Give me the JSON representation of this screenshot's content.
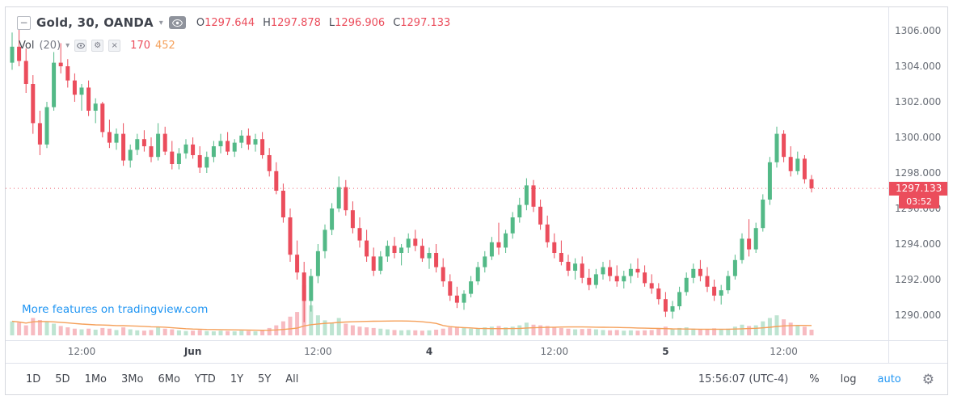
{
  "header": {
    "symbol_title": "Gold, 30, OANDA",
    "ohlc": {
      "o_label": "O",
      "o": "1297.644",
      "h_label": "H",
      "h": "1297.878",
      "l_label": "L",
      "l": "1296.906",
      "c_label": "C",
      "c": "1297.133"
    },
    "indicator": {
      "name": "Vol",
      "param": "(20)",
      "current_value": "170",
      "ma_value": "452"
    }
  },
  "icons": {
    "collapse_minus": "−",
    "caret_down": "▾",
    "gear": "⚙",
    "close": "×"
  },
  "watermark_link": "More features on tradingview.com",
  "toolbar": {
    "ranges": [
      "1D",
      "5D",
      "1Mo",
      "3Mo",
      "6Mo",
      "YTD",
      "1Y",
      "5Y",
      "All"
    ],
    "clock": "15:56:07 (UTC-4)",
    "percent_label": "%",
    "log_label": "log",
    "auto_label": "auto"
  },
  "colors": {
    "up": "#53b987",
    "down": "#eb4d5c",
    "up_volume": "rgba(83,185,135,0.38)",
    "down_volume": "rgba(235,77,92,0.38)",
    "volume_ma": "#f5a05a",
    "accent_blue": "#2196f3",
    "axis_text": "#686d76"
  },
  "chart_data": {
    "type": "candlestick",
    "title": "Gold, 30, OANDA",
    "symbol": "Gold",
    "interval_minutes": 30,
    "exchange": "OANDA",
    "last_price": 1297.133,
    "last_price_label": "1297.133",
    "countdown": "03:52",
    "ylim": [
      1288.6,
      1307.6
    ],
    "price_axis_ticks": [
      "1306.000",
      "1304.000",
      "1302.000",
      "1300.000",
      "1298.000",
      "1296.000",
      "1294.000",
      "1292.000",
      "1290.000"
    ],
    "time_labels": [
      {
        "text": "12:00",
        "idx": 10,
        "bold": false
      },
      {
        "text": "Jun",
        "idx": 26,
        "bold": true
      },
      {
        "text": "12:00",
        "idx": 44,
        "bold": false
      },
      {
        "text": "4",
        "idx": 60,
        "bold": true
      },
      {
        "text": "12:00",
        "idx": 78,
        "bold": false
      },
      {
        "text": "5",
        "idx": 94,
        "bold": true
      },
      {
        "text": "12:00",
        "idx": 111,
        "bold": false
      }
    ],
    "volume_ma_period": 20,
    "volume_legend": {
      "current": 170,
      "ma": 452
    },
    "candles": [
      [
        1304.2,
        1305.9,
        1303.8,
        1305.1,
        420
      ],
      [
        1305.1,
        1306.2,
        1304.0,
        1304.3,
        380
      ],
      [
        1304.3,
        1305.0,
        1302.5,
        1303.0,
        300
      ],
      [
        1303.0,
        1303.5,
        1300.2,
        1300.8,
        520
      ],
      [
        1300.8,
        1301.5,
        1299.0,
        1299.6,
        460
      ],
      [
        1299.6,
        1302.0,
        1299.4,
        1301.7,
        400
      ],
      [
        1301.7,
        1304.8,
        1301.5,
        1304.2,
        350
      ],
      [
        1304.2,
        1305.3,
        1303.6,
        1304.0,
        280
      ],
      [
        1304.0,
        1304.4,
        1302.8,
        1303.2,
        240
      ],
      [
        1303.2,
        1303.6,
        1302.0,
        1302.4,
        200
      ],
      [
        1302.4,
        1303.0,
        1301.5,
        1302.8,
        180
      ],
      [
        1302.8,
        1303.2,
        1301.2,
        1301.5,
        200
      ],
      [
        1301.5,
        1302.2,
        1300.8,
        1301.9,
        170
      ],
      [
        1301.9,
        1302.0,
        1300.0,
        1300.3,
        220
      ],
      [
        1300.3,
        1301.0,
        1299.4,
        1299.7,
        200
      ],
      [
        1299.7,
        1300.5,
        1299.3,
        1300.2,
        160
      ],
      [
        1300.2,
        1300.8,
        1298.4,
        1298.7,
        240
      ],
      [
        1298.7,
        1299.6,
        1298.3,
        1299.3,
        180
      ],
      [
        1299.3,
        1300.2,
        1299.0,
        1299.9,
        150
      ],
      [
        1299.9,
        1300.4,
        1299.2,
        1299.5,
        140
      ],
      [
        1299.5,
        1300.0,
        1298.6,
        1298.9,
        160
      ],
      [
        1298.9,
        1300.8,
        1298.7,
        1300.2,
        260
      ],
      [
        1300.2,
        1300.6,
        1299.0,
        1299.2,
        200
      ],
      [
        1299.2,
        1299.8,
        1298.2,
        1298.5,
        180
      ],
      [
        1298.5,
        1299.4,
        1298.2,
        1299.1,
        150
      ],
      [
        1299.1,
        1299.9,
        1298.8,
        1299.6,
        130
      ],
      [
        1299.6,
        1300.0,
        1298.8,
        1299.0,
        140
      ],
      [
        1299.0,
        1299.5,
        1298.0,
        1298.3,
        160
      ],
      [
        1298.3,
        1299.2,
        1298.0,
        1298.9,
        130
      ],
      [
        1298.9,
        1299.8,
        1298.6,
        1299.5,
        120
      ],
      [
        1299.5,
        1300.2,
        1299.1,
        1299.8,
        140
      ],
      [
        1299.8,
        1300.3,
        1299.0,
        1299.2,
        130
      ],
      [
        1299.2,
        1299.9,
        1298.9,
        1299.7,
        120
      ],
      [
        1299.7,
        1300.4,
        1299.4,
        1300.1,
        140
      ],
      [
        1300.1,
        1300.5,
        1299.3,
        1299.6,
        130
      ],
      [
        1299.6,
        1300.2,
        1299.2,
        1299.9,
        120
      ],
      [
        1299.9,
        1300.3,
        1298.8,
        1299.0,
        160
      ],
      [
        1299.0,
        1299.4,
        1297.8,
        1298.1,
        220
      ],
      [
        1298.1,
        1298.6,
        1296.8,
        1297.0,
        300
      ],
      [
        1297.0,
        1297.4,
        1295.2,
        1295.5,
        420
      ],
      [
        1295.5,
        1296.0,
        1293.0,
        1293.4,
        560
      ],
      [
        1293.4,
        1294.2,
        1292.0,
        1292.4,
        700
      ],
      [
        1292.4,
        1293.0,
        1289.6,
        1290.8,
        1500
      ],
      [
        1290.8,
        1292.6,
        1290.2,
        1292.2,
        900
      ],
      [
        1292.2,
        1294.0,
        1291.8,
        1293.6,
        600
      ],
      [
        1293.6,
        1295.1,
        1293.2,
        1294.8,
        450
      ],
      [
        1294.8,
        1296.3,
        1294.5,
        1296.0,
        380
      ],
      [
        1296.0,
        1297.8,
        1295.8,
        1297.2,
        520
      ],
      [
        1297.2,
        1297.6,
        1295.6,
        1295.9,
        350
      ],
      [
        1295.9,
        1296.4,
        1294.6,
        1294.9,
        300
      ],
      [
        1294.9,
        1295.5,
        1293.8,
        1294.2,
        260
      ],
      [
        1294.2,
        1294.8,
        1293.0,
        1293.3,
        240
      ],
      [
        1293.3,
        1293.8,
        1292.2,
        1292.5,
        220
      ],
      [
        1292.5,
        1293.6,
        1292.3,
        1293.3,
        200
      ],
      [
        1293.3,
        1294.2,
        1293.0,
        1293.9,
        180
      ],
      [
        1293.9,
        1294.4,
        1293.2,
        1293.5,
        160
      ],
      [
        1293.5,
        1294.0,
        1292.8,
        1293.8,
        150
      ],
      [
        1293.8,
        1294.6,
        1293.5,
        1294.3,
        160
      ],
      [
        1294.3,
        1294.8,
        1293.6,
        1293.9,
        150
      ],
      [
        1293.9,
        1294.3,
        1293.0,
        1293.2,
        140
      ],
      [
        1293.2,
        1293.8,
        1292.6,
        1293.5,
        150
      ],
      [
        1293.5,
        1294.0,
        1292.4,
        1292.7,
        170
      ],
      [
        1292.7,
        1293.2,
        1291.6,
        1291.9,
        200
      ],
      [
        1291.9,
        1292.3,
        1290.8,
        1291.1,
        240
      ],
      [
        1291.1,
        1291.6,
        1290.4,
        1290.7,
        260
      ],
      [
        1290.7,
        1291.4,
        1290.3,
        1291.2,
        220
      ],
      [
        1291.2,
        1292.2,
        1291.0,
        1291.9,
        200
      ],
      [
        1291.9,
        1293.0,
        1291.7,
        1292.7,
        220
      ],
      [
        1292.7,
        1293.6,
        1292.4,
        1293.3,
        240
      ],
      [
        1293.3,
        1294.4,
        1293.1,
        1294.1,
        260
      ],
      [
        1294.1,
        1295.2,
        1293.4,
        1293.8,
        280
      ],
      [
        1293.8,
        1294.8,
        1293.5,
        1294.6,
        240
      ],
      [
        1294.6,
        1295.8,
        1294.3,
        1295.5,
        260
      ],
      [
        1295.5,
        1296.6,
        1295.2,
        1296.2,
        300
      ],
      [
        1296.2,
        1297.7,
        1295.9,
        1297.3,
        380
      ],
      [
        1297.3,
        1297.6,
        1295.8,
        1296.1,
        320
      ],
      [
        1296.1,
        1296.5,
        1294.8,
        1295.1,
        300
      ],
      [
        1295.1,
        1295.6,
        1293.8,
        1294.1,
        280
      ],
      [
        1294.1,
        1294.6,
        1293.2,
        1293.5,
        240
      ],
      [
        1293.5,
        1294.2,
        1292.8,
        1293.0,
        220
      ],
      [
        1293.0,
        1293.4,
        1292.2,
        1292.5,
        200
      ],
      [
        1292.5,
        1293.2,
        1292.0,
        1292.9,
        180
      ],
      [
        1292.9,
        1293.3,
        1291.8,
        1292.1,
        190
      ],
      [
        1292.1,
        1292.6,
        1291.4,
        1291.7,
        200
      ],
      [
        1291.7,
        1292.6,
        1291.5,
        1292.3,
        180
      ],
      [
        1292.3,
        1293.0,
        1292.0,
        1292.7,
        160
      ],
      [
        1292.7,
        1293.1,
        1291.9,
        1292.2,
        150
      ],
      [
        1292.2,
        1292.8,
        1291.6,
        1291.9,
        160
      ],
      [
        1291.9,
        1292.5,
        1291.5,
        1292.2,
        140
      ],
      [
        1292.2,
        1292.9,
        1291.8,
        1292.6,
        150
      ],
      [
        1292.6,
        1293.2,
        1292.1,
        1292.4,
        140
      ],
      [
        1292.4,
        1292.8,
        1291.6,
        1291.8,
        150
      ],
      [
        1291.8,
        1292.3,
        1291.2,
        1291.5,
        160
      ],
      [
        1291.5,
        1291.8,
        1290.6,
        1290.9,
        220
      ],
      [
        1290.9,
        1291.3,
        1289.9,
        1290.2,
        260
      ],
      [
        1290.2,
        1290.8,
        1289.8,
        1290.5,
        200
      ],
      [
        1290.5,
        1291.6,
        1290.3,
        1291.3,
        220
      ],
      [
        1291.3,
        1292.4,
        1291.1,
        1292.1,
        240
      ],
      [
        1292.1,
        1292.9,
        1291.8,
        1292.6,
        200
      ],
      [
        1292.6,
        1293.1,
        1291.9,
        1292.2,
        180
      ],
      [
        1292.2,
        1292.7,
        1291.3,
        1291.6,
        190
      ],
      [
        1291.6,
        1292.0,
        1290.8,
        1291.1,
        210
      ],
      [
        1291.1,
        1291.7,
        1290.6,
        1291.4,
        180
      ],
      [
        1291.4,
        1292.5,
        1291.2,
        1292.2,
        200
      ],
      [
        1292.2,
        1293.4,
        1292.0,
        1293.1,
        260
      ],
      [
        1293.1,
        1294.6,
        1292.9,
        1294.3,
        320
      ],
      [
        1294.3,
        1295.4,
        1293.3,
        1293.7,
        280
      ],
      [
        1293.7,
        1295.2,
        1293.5,
        1294.9,
        300
      ],
      [
        1294.9,
        1296.8,
        1294.7,
        1296.5,
        420
      ],
      [
        1296.5,
        1298.9,
        1296.2,
        1298.6,
        520
      ],
      [
        1298.6,
        1300.6,
        1298.3,
        1300.2,
        600
      ],
      [
        1300.2,
        1300.4,
        1298.6,
        1298.9,
        480
      ],
      [
        1298.9,
        1299.5,
        1297.8,
        1298.1,
        380
      ],
      [
        1298.1,
        1299.2,
        1297.9,
        1298.8,
        300
      ],
      [
        1298.8,
        1299.0,
        1297.4,
        1297.644,
        260
      ],
      [
        1297.644,
        1297.878,
        1296.906,
        1297.133,
        170
      ]
    ]
  }
}
